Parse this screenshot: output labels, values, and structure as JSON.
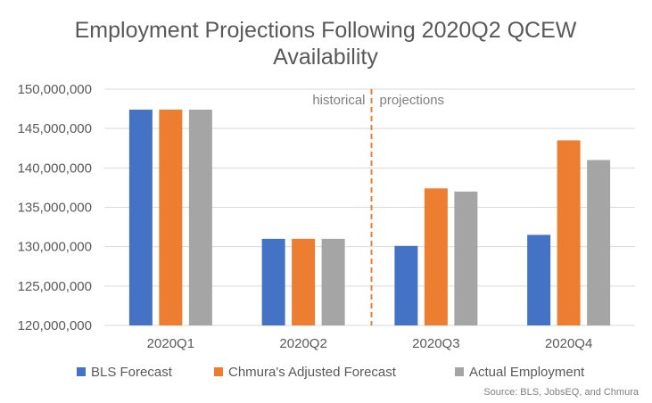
{
  "chart_data": {
    "type": "bar",
    "title_lines": [
      "Employment Projections Following 2020Q2 QCEW",
      "Availability"
    ],
    "categories": [
      "2020Q1",
      "2020Q2",
      "2020Q3",
      "2020Q4"
    ],
    "series": [
      {
        "name": "BLS Forecast",
        "color": "#4472C4",
        "values": [
          147400000,
          131000000,
          130100000,
          131500000
        ]
      },
      {
        "name": "Chmura's Adjusted Forecast",
        "color": "#ED7D31",
        "values": [
          147400000,
          131000000,
          137400000,
          143500000
        ]
      },
      {
        "name": "Actual Employment",
        "color": "#A5A5A5",
        "values": [
          147400000,
          131000000,
          137000000,
          141000000
        ]
      }
    ],
    "ylim": [
      120000000,
      150000000
    ],
    "yticks": [
      "120,000,000",
      "125,000,000",
      "130,000,000",
      "135,000,000",
      "140,000,000",
      "145,000,000",
      "150,000,000"
    ],
    "ytick_values": [
      120000000,
      125000000,
      130000000,
      135000000,
      140000000,
      145000000,
      150000000
    ],
    "divider": {
      "between": [
        "2020Q2",
        "2020Q3"
      ],
      "color": "#ED7D31",
      "left_label": "historical",
      "right_label": "projections"
    },
    "grid": true,
    "legend_position": "bottom",
    "source": "Source: BLS, JobsEQ, and Chmura"
  }
}
